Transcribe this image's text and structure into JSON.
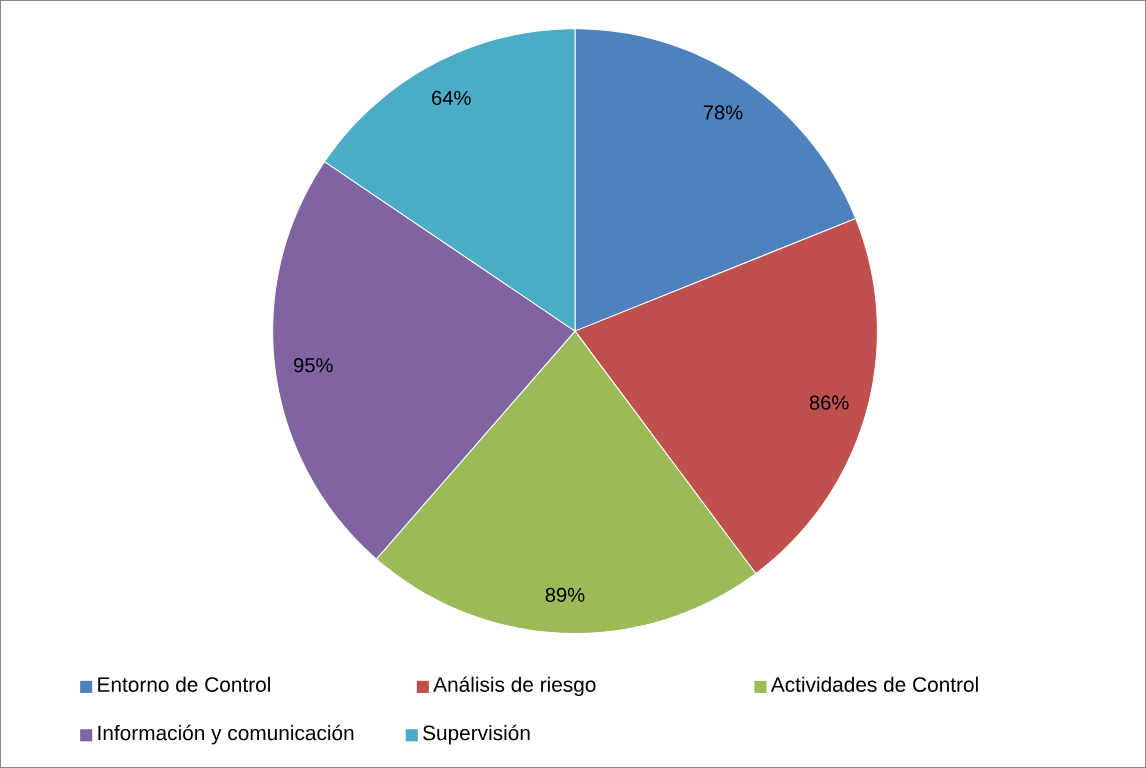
{
  "chart_data": {
    "type": "pie",
    "categories": [
      "Entorno de Control",
      "Análisis de riesgo",
      "Actividades de Control",
      "Información y comunicación",
      "Supervisión"
    ],
    "values": [
      78,
      86,
      89,
      95,
      64
    ],
    "value_labels": [
      "78%",
      "86%",
      "89%",
      "95%",
      "64%"
    ],
    "colors": [
      "#4f81bd",
      "#c0504d",
      "#9bbb59",
      "#8064a2",
      "#4bacc6"
    ],
    "legend": "bottom"
  }
}
